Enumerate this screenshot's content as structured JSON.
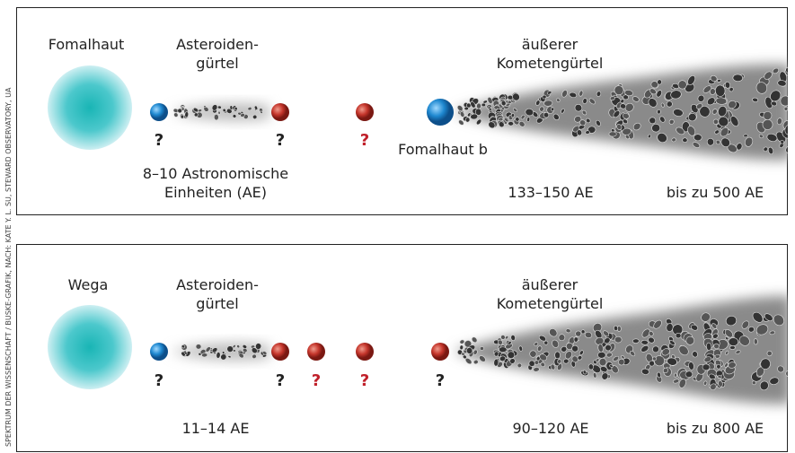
{
  "credit": "SPEKTRUM DER WISSENSCHAFT / BUSKE-GRAFIK, NACH: KATE Y. L. SU, STEWARD OBSERVATORY, UA",
  "panels": [
    {
      "star": "Fomalhaut",
      "asteroid_belt": [
        "Asteroiden-",
        "gürtel"
      ],
      "comet_belt": [
        "äußerer",
        "Kometengürtel"
      ],
      "questions": [
        "?",
        "?",
        "?"
      ],
      "planet_label": "Fomalhaut b",
      "inner_distance": [
        "8–10 Astronomische",
        "Einheiten (AE)"
      ],
      "comet_distance": "133–150 AE",
      "outer_distance": "bis zu 500 AE"
    },
    {
      "star": "Wega",
      "asteroid_belt": [
        "Asteroiden-",
        "gürtel"
      ],
      "comet_belt": [
        "äußerer",
        "Kometengürtel"
      ],
      "questions": [
        "?",
        "?",
        "?",
        "?",
        "?"
      ],
      "inner_distance": [
        "11–14 AE"
      ],
      "comet_distance": "90–120 AE",
      "outer_distance": "bis zu 800 AE"
    }
  ]
}
